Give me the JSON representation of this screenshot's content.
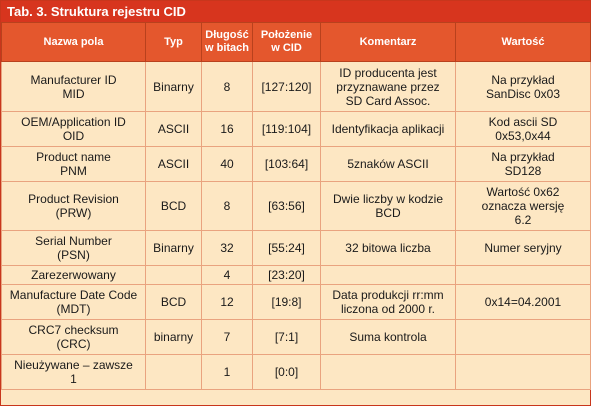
{
  "title": "Tab. 3. Struktura rejestru CID",
  "headers": {
    "name": "Nazwa pola",
    "type": "Typ",
    "bits": "Długość\nw bitach",
    "position": "Położenie\nw CID",
    "comment": "Komentarz",
    "value": "Wartość"
  },
  "rows": [
    {
      "name": "Manufacturer ID\nMID",
      "type": "Binarny",
      "bits": "8",
      "position": "[127:120]",
      "comment": "ID producenta jest\nprzyznawane przez\nSD Card Assoc.",
      "value": "Na przykład\nSanDisc 0x03"
    },
    {
      "name": "OEM/Application ID\nOID",
      "type": "ASCII",
      "bits": "16",
      "position": "[119:104]",
      "comment": "Identyfikacja aplikacji",
      "value": "Kod ascii SD\n0x53,0x44"
    },
    {
      "name": "Product name\nPNM",
      "type": "ASCII",
      "bits": "40",
      "position": "[103:64]",
      "comment": "5znaków ASCII",
      "value": "Na przykład\nSD128"
    },
    {
      "name": "Product Revision\n(PRW)",
      "type": "BCD",
      "bits": "8",
      "position": "[63:56]",
      "comment": "Dwie liczby w kodzie\nBCD",
      "value": "Wartość 0x62\noznacza wersję\n6.2"
    },
    {
      "name": "Serial Number\n(PSN)",
      "type": "Binarny",
      "bits": "32",
      "position": "[55:24]",
      "comment": "32 bitowa liczba",
      "value": "Numer seryjny"
    },
    {
      "name": "Zarezerwowany",
      "type": "",
      "bits": "4",
      "position": "[23:20]",
      "comment": "",
      "value": ""
    },
    {
      "name": "Manufacture Date Code\n(MDT)",
      "type": "BCD",
      "bits": "12",
      "position": "[19:8]",
      "comment": "Data produkcji rr:mm\nliczona od 2000 r.",
      "value": "0x14=04.2001"
    },
    {
      "name": "CRC7 checksum\n(CRC)",
      "type": "binarny",
      "bits": "7",
      "position": "[7:1]",
      "comment": "Suma kontrola",
      "value": ""
    },
    {
      "name": "Nieużywane – zawsze\n1",
      "type": "",
      "bits": "1",
      "position": "[0:0]",
      "comment": "",
      "value": ""
    }
  ]
}
